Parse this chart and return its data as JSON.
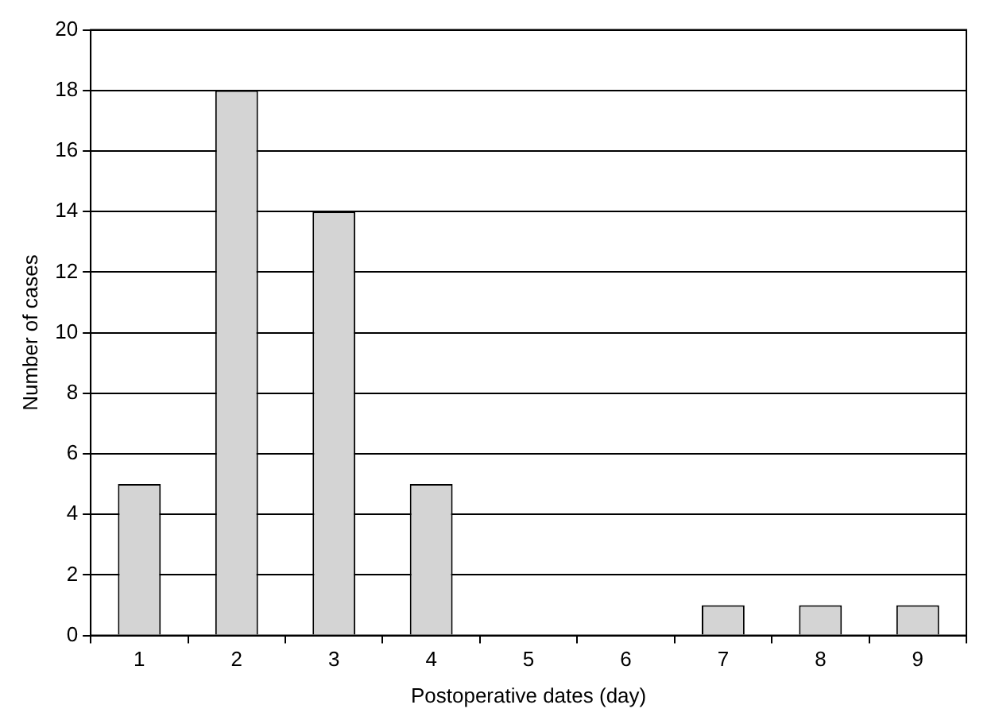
{
  "chart_data": {
    "type": "bar",
    "xlabel": "Postoperative dates (day)",
    "ylabel": "Number of cases",
    "categories": [
      "1",
      "2",
      "3",
      "4",
      "5",
      "6",
      "7",
      "8",
      "9"
    ],
    "values": [
      5,
      18,
      14,
      5,
      0,
      0,
      1,
      1,
      1
    ],
    "color": "#d4d4d4",
    "ylim": [
      0,
      20
    ],
    "yticks": [
      0,
      2,
      4,
      6,
      8,
      10,
      12,
      14,
      16,
      18,
      20
    ],
    "grid": "y"
  }
}
